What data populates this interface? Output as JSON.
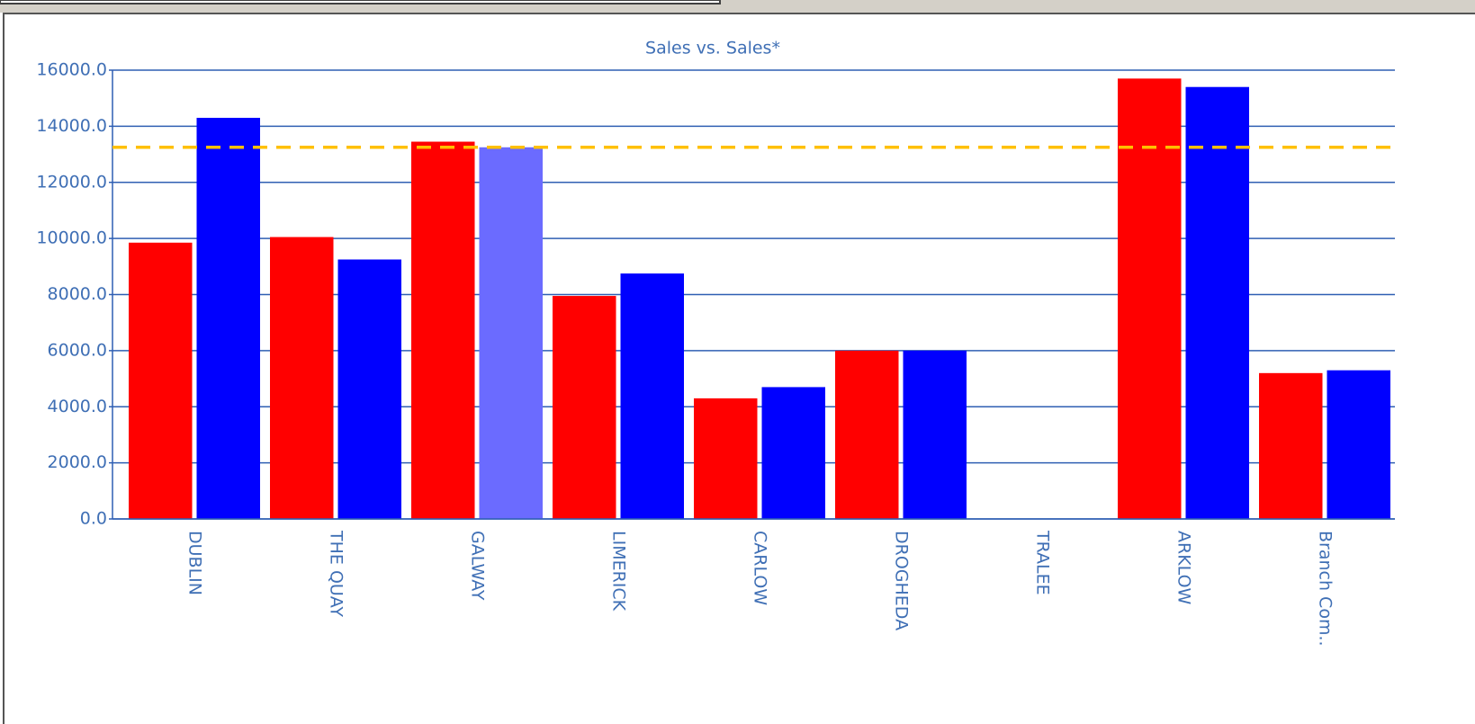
{
  "chart_data": {
    "type": "bar",
    "title": "Sales vs. Sales*",
    "categories": [
      "DUBLIN",
      "THE QUAY",
      "GALWAY",
      "LIMERICK",
      "CARLOW",
      "DROGHEDA",
      "TRALEE",
      "ARKLOW",
      "Branch Com.."
    ],
    "series": [
      {
        "color": "#ff0000",
        "values": [
          9850,
          10050,
          13450,
          7950,
          4300,
          6000,
          null,
          15700,
          5200
        ]
      },
      {
        "color": "#0000ff",
        "colors": [
          "#0000ff",
          "#0000ff",
          "#6b6bff",
          "#0000ff",
          "#0000ff",
          "#0000ff",
          "#0000ff",
          "#0000ff",
          "#0000ff"
        ],
        "values": [
          14300,
          9250,
          13250,
          8750,
          4700,
          6000,
          null,
          15400,
          5300
        ]
      }
    ],
    "ylim": [
      0,
      16000
    ],
    "yticks": [
      {
        "value": 0,
        "label": "0.0"
      },
      {
        "value": 2000,
        "label": "2000.0"
      },
      {
        "value": 4000,
        "label": "4000.0"
      },
      {
        "value": 6000,
        "label": "6000.0"
      },
      {
        "value": 8000,
        "label": "8000.0"
      },
      {
        "value": 10000,
        "label": "10000.0"
      },
      {
        "value": 12000,
        "label": "12000.0"
      },
      {
        "value": 14000,
        "label": "14000.0"
      },
      {
        "value": 16000,
        "label": "16000.0"
      }
    ],
    "grid": true,
    "reference_line": {
      "value": 13250,
      "color": "#ffc000"
    }
  }
}
